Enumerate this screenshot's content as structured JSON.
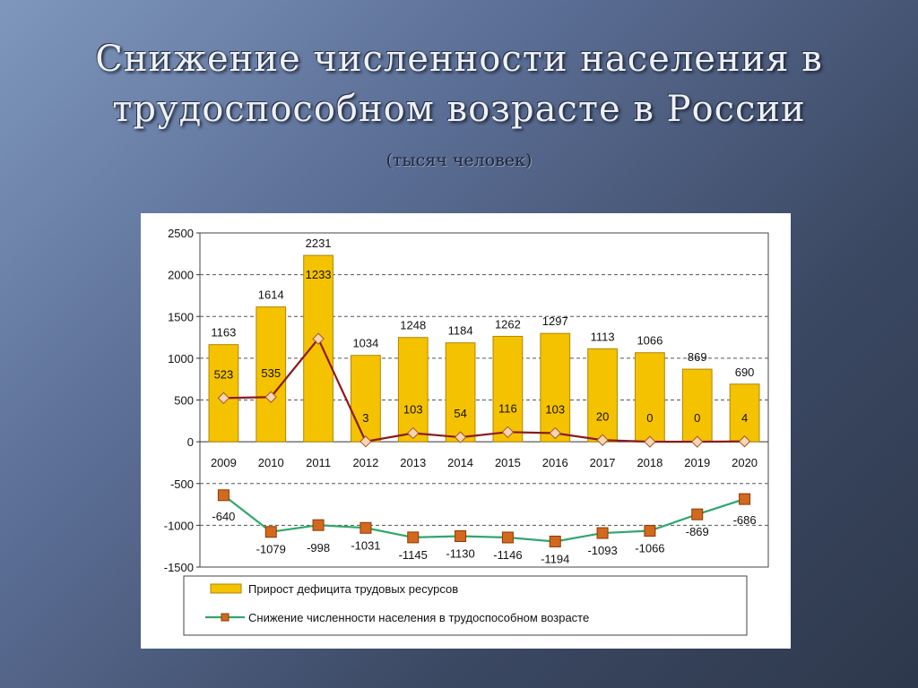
{
  "slide": {
    "title_line1": "Снижение численности населения в",
    "title_line2": "трудоспособном возрасте в России",
    "subtitle": "(тысяч человек)"
  },
  "colors": {
    "bar_fill": "#f5c200",
    "bar_stroke": "#b08600",
    "line_upper": "#8b1a1a",
    "marker_upper": "#f7d6b4",
    "line_lower": "#2ea86b",
    "marker_lower": "#d2691e"
  },
  "chart_data": {
    "type": "bar",
    "categories": [
      "2009",
      "2010",
      "2011",
      "2012",
      "2013",
      "2014",
      "2015",
      "2016",
      "2017",
      "2018",
      "2019",
      "2020"
    ],
    "ylim": [
      -1500,
      2500
    ],
    "yticks": [
      "2500",
      "2000",
      "1500",
      "1000",
      "500",
      "0",
      "-500",
      "-1000",
      "-1500"
    ],
    "grid": true,
    "legend_position": "bottom",
    "series": [
      {
        "name": "Прирост дефицита трудовых ресурсов",
        "type": "bar",
        "values": [
          1163,
          1614,
          2231,
          1034,
          1248,
          1184,
          1262,
          1297,
          1113,
          1066,
          869,
          690
        ],
        "labels": [
          "1163",
          "1614",
          "2231",
          "1034",
          "1248",
          "1184",
          "1262",
          "1297",
          "1113",
          "1066",
          "869",
          "690"
        ]
      },
      {
        "type": "line",
        "values": [
          523,
          535,
          1233,
          3,
          103,
          54,
          116,
          103,
          20,
          0,
          0,
          4
        ],
        "labels": [
          "523",
          "535",
          "1233",
          "3",
          "103",
          "54",
          "116",
          "103",
          "20",
          "0",
          "0",
          "4"
        ]
      },
      {
        "name": "Снижение численности населения в трудоспособном возрасте",
        "type": "line",
        "values": [
          -640,
          -1079,
          -998,
          -1031,
          -1145,
          -1130,
          -1146,
          -1194,
          -1093,
          -1066,
          -869,
          -686
        ],
        "labels": [
          "-640",
          "-1079",
          "-998",
          "-1031",
          "-1145",
          "-1130",
          "-1146",
          "-1194",
          "-1093",
          "-1066",
          "-869",
          "-686"
        ]
      }
    ]
  }
}
